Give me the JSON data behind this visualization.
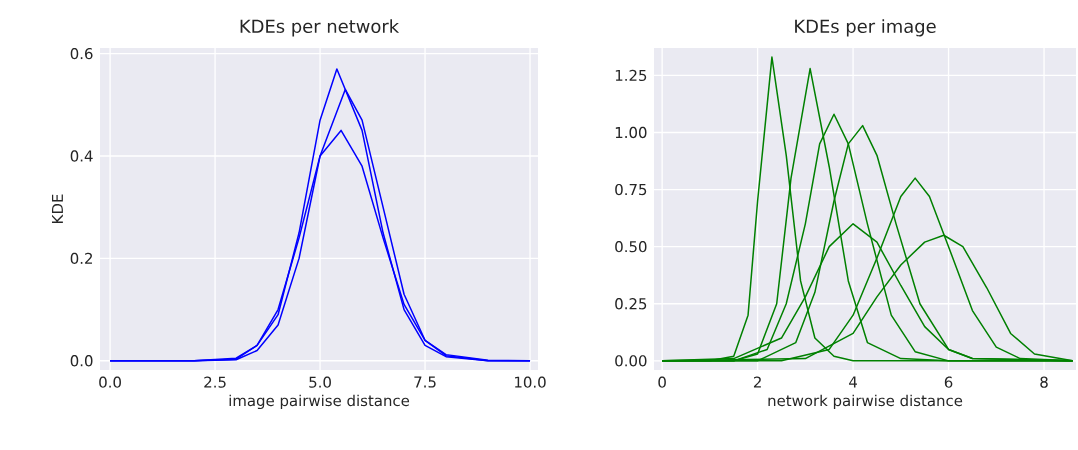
{
  "chart_data": [
    {
      "type": "line",
      "title": "KDEs per network",
      "xlabel": "image pairwise distance",
      "ylabel": "KDE",
      "grid": true,
      "xlim": [
        -0.24,
        10.19
      ],
      "ylim": [
        -0.018,
        0.611
      ],
      "xticks": [
        {
          "value": 0,
          "label": "0.0"
        },
        {
          "value": 2.5,
          "label": "2.5"
        },
        {
          "value": 5,
          "label": "5.0"
        },
        {
          "value": 7.5,
          "label": "7.5"
        },
        {
          "value": 10,
          "label": "10.0"
        }
      ],
      "yticks": [
        {
          "value": 0,
          "label": "0.0"
        },
        {
          "value": 0.2,
          "label": "0.2"
        },
        {
          "value": 0.4,
          "label": "0.4"
        },
        {
          "value": 0.6,
          "label": "0.6"
        }
      ],
      "series": [
        {
          "color": "#0000ff",
          "x": [
            0,
            2,
            3,
            3.5,
            4,
            4.5,
            5,
            5.4,
            6,
            6.5,
            7,
            7.5,
            8,
            9,
            10
          ],
          "values": [
            0,
            0,
            0.003,
            0.03,
            0.09,
            0.25,
            0.47,
            0.57,
            0.45,
            0.25,
            0.1,
            0.03,
            0.008,
            0,
            0
          ]
        },
        {
          "color": "#0000ff",
          "x": [
            0,
            2,
            3,
            3.5,
            4,
            4.5,
            5,
            5.5,
            6,
            6.5,
            7,
            7.5,
            8,
            9,
            10
          ],
          "values": [
            0,
            0,
            0.005,
            0.03,
            0.1,
            0.24,
            0.4,
            0.45,
            0.38,
            0.24,
            0.11,
            0.04,
            0.012,
            0.001,
            0
          ]
        },
        {
          "color": "#0000ff",
          "x": [
            0,
            2,
            3,
            3.5,
            4,
            4.5,
            5,
            5.6,
            6,
            6.5,
            7,
            7.5,
            8,
            9,
            10
          ],
          "values": [
            0,
            0,
            0.002,
            0.02,
            0.07,
            0.2,
            0.4,
            0.53,
            0.47,
            0.3,
            0.13,
            0.04,
            0.01,
            0,
            0
          ]
        }
      ]
    },
    {
      "type": "line",
      "title": "KDEs per image",
      "xlabel": "network pairwise distance",
      "grid": true,
      "xlim": [
        -0.17,
        8.67
      ],
      "ylim": [
        -0.04,
        1.37
      ],
      "xticks": [
        0,
        2,
        4,
        6,
        8
      ],
      "yticks": [
        {
          "value": 0,
          "label": "0.00"
        },
        {
          "value": 0.25,
          "label": "0.25"
        },
        {
          "value": 0.5,
          "label": "0.50"
        },
        {
          "value": 0.75,
          "label": "0.75"
        },
        {
          "value": 1,
          "label": "1.00"
        },
        {
          "value": 1.25,
          "label": "1.25"
        }
      ],
      "series": [
        {
          "color": "#008000",
          "x": [
            0,
            1,
            1.5,
            1.8,
            2.0,
            2.3,
            2.6,
            2.9,
            3.2,
            3.6,
            4.0,
            5,
            6,
            8.6
          ],
          "values": [
            0,
            0,
            0.02,
            0.2,
            0.7,
            1.33,
            0.9,
            0.35,
            0.1,
            0.02,
            0,
            0,
            0,
            0
          ]
        },
        {
          "color": "#008000",
          "x": [
            0,
            1.5,
            2.0,
            2.4,
            2.7,
            3.1,
            3.5,
            3.9,
            4.3,
            5,
            6,
            8.6
          ],
          "values": [
            0,
            0,
            0.03,
            0.25,
            0.8,
            1.28,
            0.85,
            0.35,
            0.08,
            0.01,
            0,
            0
          ]
        },
        {
          "color": "#008000",
          "x": [
            0,
            1.5,
            2.2,
            2.6,
            3.0,
            3.3,
            3.6,
            3.9,
            4.3,
            4.8,
            5.3,
            6,
            8.6
          ],
          "values": [
            0,
            0,
            0.05,
            0.25,
            0.6,
            0.95,
            1.08,
            0.95,
            0.6,
            0.2,
            0.04,
            0,
            0
          ]
        },
        {
          "color": "#008000",
          "x": [
            0,
            2,
            2.8,
            3.2,
            3.6,
            3.9,
            4.2,
            4.5,
            4.9,
            5.4,
            6,
            6.5,
            8.6
          ],
          "values": [
            0,
            0,
            0.08,
            0.3,
            0.7,
            0.95,
            1.03,
            0.9,
            0.6,
            0.25,
            0.05,
            0.01,
            0
          ]
        },
        {
          "color": "#008000",
          "x": [
            0,
            2.5,
            3.5,
            4.0,
            4.5,
            5.0,
            5.3,
            5.6,
            6.0,
            6.5,
            7.0,
            7.5,
            8.6
          ],
          "values": [
            0,
            0,
            0.05,
            0.2,
            0.45,
            0.72,
            0.8,
            0.72,
            0.5,
            0.22,
            0.06,
            0.01,
            0
          ]
        },
        {
          "color": "#008000",
          "x": [
            0,
            3,
            4,
            4.5,
            5,
            5.5,
            5.9,
            6.3,
            6.8,
            7.3,
            7.8,
            8.6
          ],
          "values": [
            0,
            0.01,
            0.12,
            0.28,
            0.42,
            0.52,
            0.55,
            0.5,
            0.32,
            0.12,
            0.03,
            0
          ]
        },
        {
          "color": "#008000",
          "x": [
            0,
            1.5,
            2.5,
            3,
            3.5,
            4,
            4.5,
            5,
            5.5,
            6,
            6.5,
            8.6
          ],
          "values": [
            0,
            0.01,
            0.1,
            0.28,
            0.5,
            0.6,
            0.52,
            0.33,
            0.15,
            0.05,
            0.01,
            0
          ]
        }
      ]
    }
  ]
}
